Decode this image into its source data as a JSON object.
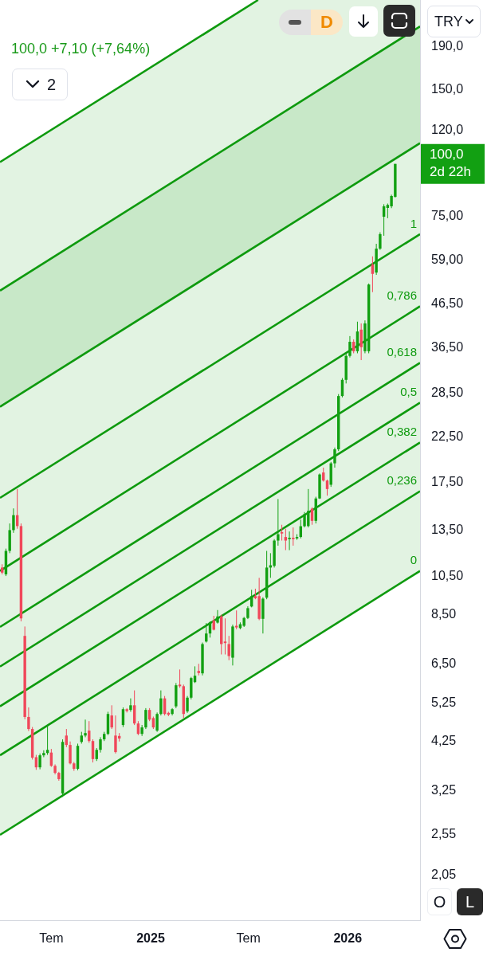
{
  "chart_data": {
    "type": "candlestick",
    "subtitle": "100,0 +7,10 (+7,64%)",
    "x": [
      "2024-04-01",
      "2024-04-08",
      "2024-04-15",
      "2024-04-22",
      "2024-04-29",
      "2024-05-06",
      "2024-05-13",
      "2024-05-20",
      "2024-05-27",
      "2024-06-03",
      "2024-06-10",
      "2024-06-17",
      "2024-06-24",
      "2024-07-01",
      "2024-07-08",
      "2024-07-15",
      "2024-07-22",
      "2024-07-29",
      "2024-08-05",
      "2024-08-12",
      "2024-08-19",
      "2024-08-26",
      "2024-09-02",
      "2024-09-09",
      "2024-09-16",
      "2024-09-23",
      "2024-09-30",
      "2024-10-07",
      "2024-10-14",
      "2024-10-21",
      "2024-10-28",
      "2024-11-04",
      "2024-11-11",
      "2024-11-18",
      "2024-11-25",
      "2024-12-02",
      "2024-12-09",
      "2024-12-16",
      "2024-12-23",
      "2024-12-30",
      "2025-01-06",
      "2025-01-13",
      "2025-01-20",
      "2025-01-27",
      "2025-02-03",
      "2025-02-10",
      "2025-02-17",
      "2025-02-24",
      "2025-03-03",
      "2025-03-10",
      "2025-03-17",
      "2025-03-24",
      "2025-03-31",
      "2025-04-07",
      "2025-04-14",
      "2025-04-21",
      "2025-04-28",
      "2025-05-05",
      "2025-05-12",
      "2025-05-19",
      "2025-05-26",
      "2025-06-02",
      "2025-06-09",
      "2025-06-16",
      "2025-06-23",
      "2025-06-30",
      "2025-07-07",
      "2025-07-14",
      "2025-07-21",
      "2025-07-28",
      "2025-08-04",
      "2025-08-11",
      "2025-08-18",
      "2025-08-25",
      "2025-09-01",
      "2025-09-08",
      "2025-09-15",
      "2025-09-22",
      "2025-09-29",
      "2025-10-06",
      "2025-10-13",
      "2025-10-20",
      "2025-10-27",
      "2025-11-03",
      "2025-11-10",
      "2025-11-17",
      "2025-11-24",
      "2025-12-01",
      "2025-12-08",
      "2025-12-15",
      "2025-12-22",
      "2025-12-29",
      "2026-01-05",
      "2026-01-12",
      "2026-01-19",
      "2026-01-26",
      "2026-02-02",
      "2026-02-09",
      "2026-02-16",
      "2026-02-23",
      "2026-03-02",
      "2026-03-09",
      "2026-03-16",
      "2026-03-23",
      "2026-03-30"
    ],
    "ohlc": [
      [
        11.0,
        11.2,
        10.6,
        10.7
      ],
      [
        10.6,
        12.2,
        10.5,
        12.05
      ],
      [
        12.05,
        14.0,
        11.9,
        13.5
      ],
      [
        13.5,
        15.2,
        13.3,
        14.65
      ],
      [
        14.65,
        16.9,
        13.6,
        13.8
      ],
      [
        13.8,
        14.0,
        8.2,
        8.33
      ],
      [
        7.57,
        7.97,
        4.8,
        4.86
      ],
      [
        4.86,
        5.12,
        4.5,
        4.55
      ],
      [
        4.55,
        4.6,
        3.85,
        3.89
      ],
      [
        3.9,
        3.95,
        3.64,
        3.69
      ],
      [
        3.69,
        3.98,
        3.65,
        3.94
      ],
      [
        3.94,
        4.05,
        3.9,
        3.99
      ],
      [
        3.99,
        4.65,
        3.95,
        4.06
      ],
      [
        4.0,
        4.08,
        3.7,
        3.72
      ],
      [
        3.72,
        3.75,
        3.55,
        3.58
      ],
      [
        3.58,
        3.6,
        3.43,
        3.46
      ],
      [
        3.2,
        4.3,
        3.14,
        4.24
      ],
      [
        4.39,
        4.55,
        4.12,
        4.17
      ],
      [
        4.17,
        4.25,
        3.75,
        3.77
      ],
      [
        3.77,
        3.8,
        3.62,
        3.66
      ],
      [
        3.66,
        4.2,
        3.63,
        4.15
      ],
      [
        4.24,
        4.48,
        4.2,
        4.39
      ],
      [
        4.39,
        4.79,
        4.35,
        4.45
      ],
      [
        4.51,
        4.75,
        4.22,
        4.26
      ],
      [
        4.26,
        4.3,
        3.79,
        3.86
      ],
      [
        3.86,
        4.1,
        3.82,
        4.06
      ],
      [
        4.06,
        4.35,
        4.0,
        4.3
      ],
      [
        4.3,
        4.48,
        4.26,
        4.43
      ],
      [
        4.43,
        5.0,
        4.4,
        4.94
      ],
      [
        4.9,
        5.18,
        4.55,
        4.59
      ],
      [
        4.39,
        4.9,
        3.98,
        4.01
      ],
      [
        4.38,
        4.45,
        4.25,
        4.32
      ],
      [
        4.65,
        5.12,
        4.6,
        5.07
      ],
      [
        5.07,
        5.1,
        4.98,
        5.02
      ],
      [
        5.05,
        5.38,
        5.0,
        5.18
      ],
      [
        5.18,
        5.62,
        4.65,
        4.69
      ],
      [
        4.69,
        4.75,
        4.4,
        4.43
      ],
      [
        4.43,
        4.65,
        4.38,
        4.59
      ],
      [
        4.59,
        5.1,
        4.55,
        5.05
      ],
      [
        5.05,
        5.1,
        4.75,
        4.79
      ],
      [
        4.83,
        4.87,
        4.55,
        4.59
      ],
      [
        4.51,
        4.98,
        4.48,
        4.94
      ],
      [
        4.94,
        5.62,
        4.9,
        5.38
      ],
      [
        5.38,
        5.45,
        4.9,
        4.94
      ],
      [
        4.97,
        5.0,
        4.88,
        4.92
      ],
      [
        4.94,
        5.1,
        4.9,
        5.07
      ],
      [
        5.15,
        5.85,
        5.1,
        5.78
      ],
      [
        5.8,
        6.3,
        5.7,
        5.75
      ],
      [
        5.75,
        5.8,
        4.83,
        4.94
      ],
      [
        5.01,
        5.45,
        4.97,
        5.4
      ],
      [
        5.4,
        6.05,
        5.35,
        6.01
      ],
      [
        5.88,
        6.41,
        5.85,
        6.09
      ],
      [
        6.25,
        6.5,
        6.1,
        6.18
      ],
      [
        6.17,
        7.3,
        6.1,
        7.24
      ],
      [
        7.34,
        8.12,
        7.3,
        7.67
      ],
      [
        7.67,
        8.2,
        7.5,
        8.15
      ],
      [
        8.24,
        8.45,
        7.8,
        7.83
      ],
      [
        8.14,
        8.72,
        8.1,
        8.42
      ],
      [
        8.42,
        8.5,
        6.84,
        7.24
      ],
      [
        7.34,
        8.33,
        6.84,
        7.28
      ],
      [
        7.24,
        7.57,
        6.63,
        6.78
      ],
      [
        6.72,
        8.05,
        6.44,
        7.97
      ],
      [
        8.0,
        8.7,
        7.85,
        7.93
      ],
      [
        7.9,
        8.15,
        7.85,
        8.07
      ],
      [
        8.0,
        8.4,
        7.95,
        8.35
      ],
      [
        8.35,
        8.9,
        8.3,
        8.81
      ],
      [
        8.89,
        9.74,
        8.85,
        9.41
      ],
      [
        9.41,
        9.8,
        9.25,
        9.3
      ],
      [
        9.41,
        10.4,
        8.25,
        8.31
      ],
      [
        8.31,
        9.35,
        7.67,
        9.28
      ],
      [
        9.33,
        12.05,
        9.25,
        11.0
      ],
      [
        11.0,
        11.9,
        10.4,
        11.14
      ],
      [
        11.1,
        12.85,
        11.0,
        12.75
      ],
      [
        12.75,
        16.0,
        12.4,
        13.2
      ],
      [
        13.35,
        13.9,
        12.75,
        13.25
      ],
      [
        13.0,
        13.6,
        12.1,
        12.75
      ],
      [
        12.85,
        13.4,
        12.1,
        12.95
      ],
      [
        12.95,
        13.7,
        12.4,
        12.85
      ],
      [
        12.9,
        13.2,
        12.8,
        13.0
      ],
      [
        13.0,
        14.3,
        12.9,
        13.79
      ],
      [
        13.79,
        14.9,
        13.7,
        14.73
      ],
      [
        13.8,
        16.9,
        13.7,
        15.0
      ],
      [
        15.18,
        15.3,
        13.9,
        14.2
      ],
      [
        14.2,
        16.2,
        14.0,
        16.05
      ],
      [
        16.05,
        18.4,
        16.0,
        18.3
      ],
      [
        18.5,
        19.0,
        17.6,
        17.7
      ],
      [
        17.7,
        17.8,
        16.3,
        16.9
      ],
      [
        17.3,
        19.6,
        17.1,
        19.45
      ],
      [
        19.45,
        21.2,
        19.0,
        21.0
      ],
      [
        21.0,
        28.4,
        20.8,
        28.1
      ],
      [
        28.1,
        31.0,
        27.9,
        30.7
      ],
      [
        30.7,
        35.4,
        30.1,
        35.0
      ],
      [
        35.0,
        39.0,
        34.7,
        37.8
      ],
      [
        37.8,
        38.3,
        35.5,
        35.9
      ],
      [
        35.9,
        42.2,
        35.5,
        40.0
      ],
      [
        40.4,
        41.8,
        34.2,
        36.7
      ],
      [
        35.9,
        42.5,
        35.5,
        41.8
      ],
      [
        35.9,
        52.0,
        35.5,
        51.7
      ],
      [
        57.7,
        60.3,
        49.6,
        54.8
      ],
      [
        55.2,
        64.6,
        54.5,
        62.9
      ],
      [
        62.9,
        68.8,
        62.5,
        68.1
      ],
      [
        74.9,
        80.2,
        67.5,
        79.3
      ],
      [
        78.6,
        80.5,
        74.3,
        79.9
      ],
      [
        79.3,
        84.5,
        78.5,
        83.9
      ],
      [
        83.5,
        100.0,
        83.2,
        100.0
      ]
    ],
    "colors": [
      "#f0475a",
      "#12a012",
      "#12a012",
      "#12a012",
      "#f0475a",
      "#f0475a",
      "#f0475a",
      "#f0475a",
      "#f0475a",
      "#f0475a",
      "#12a012",
      "#12a012",
      "#12a012",
      "#f0475a",
      "#f0475a",
      "#f0475a",
      "#12a012",
      "#f0475a",
      "#f0475a",
      "#f0475a",
      "#12a012",
      "#12a012",
      "#12a012",
      "#f0475a",
      "#f0475a",
      "#12a012",
      "#12a012",
      "#12a012",
      "#12a012",
      "#f0475a",
      "#f0475a",
      "#f0475a",
      "#12a012",
      "#f0475a",
      "#12a012",
      "#f0475a",
      "#f0475a",
      "#12a012",
      "#12a012",
      "#f0475a",
      "#f0475a",
      "#12a012",
      "#12a012",
      "#f0475a",
      "#f0475a",
      "#12a012",
      "#12a012",
      "#f0475a",
      "#f0475a",
      "#12a012",
      "#12a012",
      "#12a012",
      "#f0475a",
      "#12a012",
      "#12a012",
      "#12a012",
      "#f0475a",
      "#12a012",
      "#f0475a",
      "#f0475a",
      "#f0475a",
      "#12a012",
      "#f0475a",
      "#12a012",
      "#12a012",
      "#12a012",
      "#12a012",
      "#f0475a",
      "#f0475a",
      "#12a012",
      "#12a012",
      "#12a012",
      "#12a012",
      "#12a012",
      "#f0475a",
      "#f0475a",
      "#12a012",
      "#f0475a",
      "#12a012",
      "#12a012",
      "#12a012",
      "#12a012",
      "#f0475a",
      "#12a012",
      "#12a012",
      "#f0475a",
      "#f0475a",
      "#12a012",
      "#12a012",
      "#12a012",
      "#12a012",
      "#12a012",
      "#12a012",
      "#f0475a",
      "#12a012",
      "#f0475a",
      "#12a012",
      "#12a012",
      "#f0475a",
      "#12a012",
      "#12a012",
      "#12a012",
      "#12a012",
      "#12a012",
      "#12a012"
    ],
    "series": [
      {
        "type": "line",
        "name": "0",
        "color": "#0e9a0e",
        "x": [
          "2024-03-28",
          "2026-05-15"
        ],
        "values": [
          2.55,
          10.8
        ]
      },
      {
        "type": "line",
        "name": "0,236",
        "color": "#0e9a0e",
        "x": [
          "2024-03-28",
          "2026-05-15"
        ],
        "values": [
          3.94,
          16.7
        ]
      },
      {
        "type": "line",
        "name": "0,382",
        "color": "#0e9a0e",
        "x": [
          "2024-03-28",
          "2026-05-15"
        ],
        "values": [
          5.15,
          21.8
        ]
      },
      {
        "type": "line",
        "name": "0,5",
        "color": "#0e9a0e",
        "x": [
          "2024-03-28",
          "2026-05-15"
        ],
        "values": [
          6.4,
          27.1
        ]
      },
      {
        "type": "line",
        "name": "0,618",
        "color": "#0e9a0e",
        "x": [
          "2024-03-28",
          "2026-05-15"
        ],
        "values": [
          7.95,
          33.7
        ]
      },
      {
        "type": "line",
        "name": "0,786",
        "color": "#0e9a0e",
        "x": [
          "2024-03-28",
          "2026-05-15"
        ],
        "values": [
          10.8,
          45.9
        ]
      },
      {
        "type": "line",
        "name": "1",
        "color": "#0e9a0e",
        "x": [
          "2024-03-28",
          "2026-05-15"
        ],
        "values": [
          16.1,
          68.1
        ]
      },
      {
        "type": "line",
        "color": "#0e9a0e",
        "x": [
          "2024-03-28",
          "2026-05-15"
        ],
        "values": [
          26.5,
          112
        ]
      },
      {
        "type": "line",
        "color": "#0e9a0e",
        "x": [
          "2024-03-28",
          "2026-05-15"
        ],
        "values": [
          50,
          212
        ],
        "lower": [
          2.55,
          10.8
        ],
        "upper": [
          50,
          212
        ]
      },
      {
        "type": "line",
        "color": "#0e9a0e",
        "x": [
          "2024-03-28",
          "2025-07-19",
          "2026-05-15"
        ],
        "values": [
          101,
          245,
          null
        ],
        "lower": [
          26.5,
          64.3,
          112
        ],
        "upper": [
          101,
          245,
          245
        ]
      }
    ],
    "xlim": [
      "2024-03-28",
      "2026-05-15"
    ],
    "xticks": [
      {
        "value": "2024-07-01",
        "label": "Tem"
      },
      {
        "value": "2025-01-01",
        "label": "2025"
      },
      {
        "value": "2025-07-01",
        "label": "Tem"
      },
      {
        "value": "2026-01-01",
        "label": "2026"
      }
    ],
    "ylim": [
      1.6,
      245
    ],
    "yticks": [
      {
        "value": 2.05,
        "label": "2,05"
      },
      {
        "value": 2.55,
        "label": "2,55"
      },
      {
        "value": 3.25,
        "label": "3,25"
      },
      {
        "value": 4.25,
        "label": "4,25"
      },
      {
        "value": 5.25,
        "label": "5,25"
      },
      {
        "value": 6.5,
        "label": "6,50"
      },
      {
        "value": 8.5,
        "label": "8,50"
      },
      {
        "value": 10.5,
        "label": "10,50"
      },
      {
        "value": 13.5,
        "label": "13,50"
      },
      {
        "value": 17.5,
        "label": "17,50"
      },
      {
        "value": 22.5,
        "label": "22,50"
      },
      {
        "value": 28.5,
        "label": "28,50"
      },
      {
        "value": 36.5,
        "label": "36,50"
      },
      {
        "value": 46.5,
        "label": "46,50"
      },
      {
        "value": 59,
        "label": "59,00"
      },
      {
        "value": 75,
        "label": "75,00"
      },
      {
        "value": 120,
        "label": "120,0"
      },
      {
        "value": 150,
        "label": "150,0"
      },
      {
        "value": 190,
        "label": "190,0"
      }
    ],
    "log": true,
    "annotations": [
      "100,0\n2d 22h",
      "D",
      "2",
      "TRY",
      "O",
      "L"
    ]
  }
}
